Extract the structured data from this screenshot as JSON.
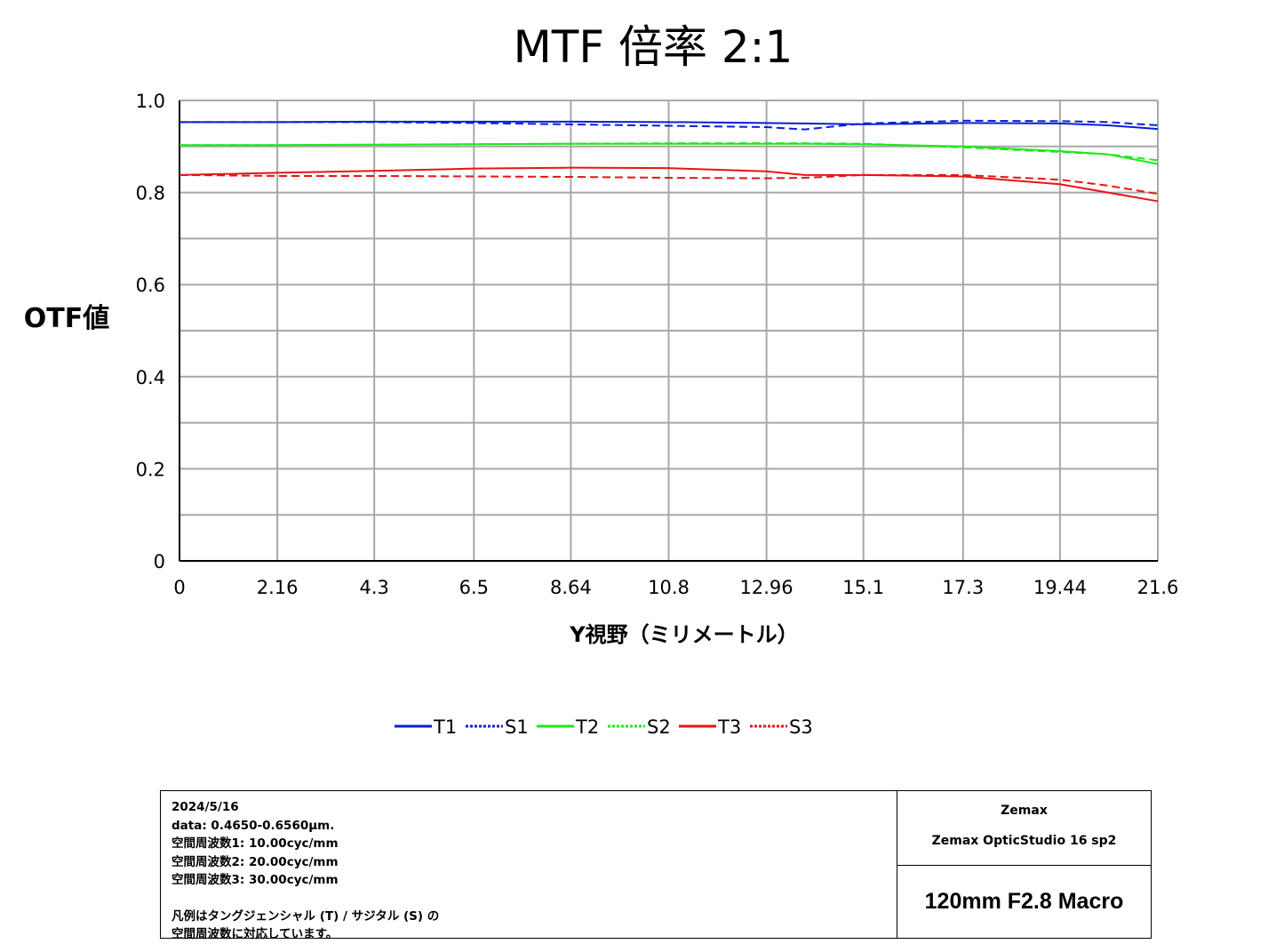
{
  "chart_data": {
    "type": "line",
    "title": "MTF 倍率 2:1",
    "xlabel": "Y視野（ミリメートル）",
    "ylabel": "OTF値",
    "x_ticks": [
      "0",
      "2.16",
      "4.3",
      "6.5",
      "8.64",
      "10.8",
      "12.96",
      "15.1",
      "17.3",
      "19.44",
      "21.6"
    ],
    "y_ticks": [
      "0",
      "0.2",
      "0.4",
      "0.6",
      "0.8",
      "1.0"
    ],
    "xlim": [
      0,
      21.6
    ],
    "ylim": [
      0,
      1.0
    ],
    "grid": true,
    "legend_position": "bottom",
    "x": [
      0,
      2.16,
      4.3,
      6.5,
      8.64,
      10.8,
      12.96,
      13.8,
      15.1,
      17.3,
      19.44,
      20.5,
      21.6
    ],
    "series": [
      {
        "name": "T1",
        "color": "#0a1ed8",
        "dash": "solid",
        "values": [
          0.953,
          0.953,
          0.954,
          0.954,
          0.954,
          0.953,
          0.951,
          0.95,
          0.948,
          0.951,
          0.95,
          0.946,
          0.938
        ]
      },
      {
        "name": "S1",
        "color": "#0a1ed8",
        "dash": "dashed",
        "values": [
          0.953,
          0.953,
          0.953,
          0.951,
          0.948,
          0.945,
          0.942,
          0.937,
          0.95,
          0.956,
          0.955,
          0.953,
          0.946
        ]
      },
      {
        "name": "T2",
        "color": "#1aea1a",
        "dash": "solid",
        "values": [
          0.903,
          0.903,
          0.904,
          0.905,
          0.906,
          0.906,
          0.906,
          0.906,
          0.905,
          0.9,
          0.89,
          0.883,
          0.862
        ]
      },
      {
        "name": "S2",
        "color": "#1aea1a",
        "dash": "dashed",
        "values": [
          0.903,
          0.903,
          0.904,
          0.905,
          0.906,
          0.907,
          0.907,
          0.907,
          0.906,
          0.898,
          0.888,
          0.883,
          0.87
        ]
      },
      {
        "name": "T3",
        "color": "#e81414",
        "dash": "solid",
        "values": [
          0.838,
          0.843,
          0.847,
          0.852,
          0.854,
          0.853,
          0.846,
          0.838,
          0.838,
          0.835,
          0.818,
          0.8,
          0.781
        ]
      },
      {
        "name": "S3",
        "color": "#e81414",
        "dash": "dashed",
        "values": [
          0.838,
          0.836,
          0.836,
          0.835,
          0.834,
          0.832,
          0.831,
          0.832,
          0.838,
          0.838,
          0.828,
          0.815,
          0.797
        ]
      }
    ]
  },
  "info": {
    "lines": [
      "2024/5/16",
      "data: 0.4650-0.6560μm.",
      "空間周波数1: 10.00cyc/mm",
      "空間周波数2: 20.00cyc/mm",
      "空間周波数3: 30.00cyc/mm"
    ],
    "note_lines": [
      "凡例はタングジェンシャル (T) / サジタル (S) の",
      "空間周波数に対応しています。"
    ],
    "vendor": "Zemax",
    "software": "Zemax OpticStudio 16 sp2",
    "lens_name": "120mm F2.8 Macro"
  }
}
